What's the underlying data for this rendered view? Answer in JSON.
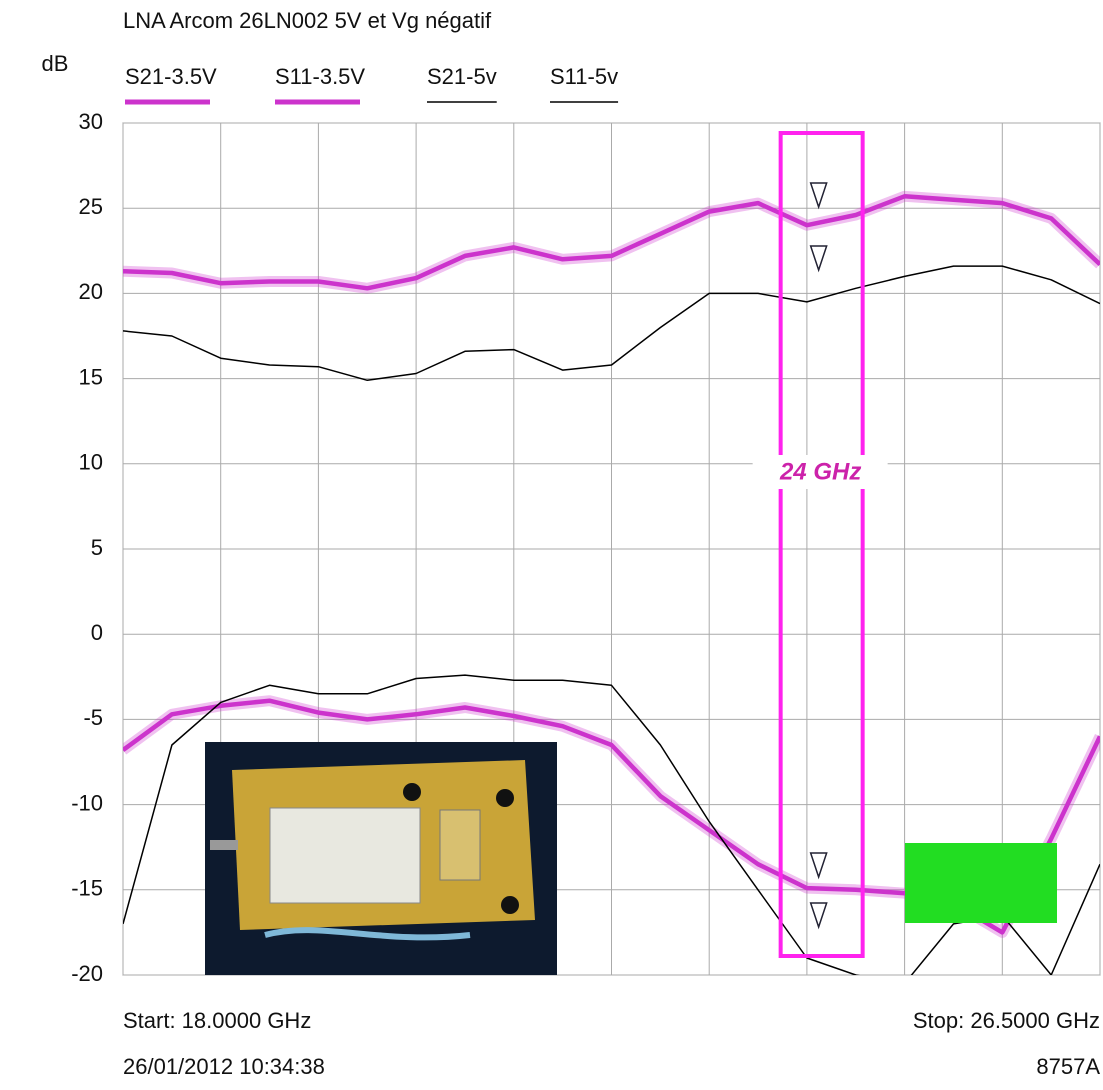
{
  "chart_data": {
    "type": "line",
    "title": "LNA Arcom 26LN002 5V et Vg négatif",
    "y_label": "dB",
    "start_label": "Start: 18.0000 GHz",
    "stop_label": "Stop: 26.5000 GHz",
    "timestamp": "26/01/2012 10:34:38",
    "instrument": "8757A",
    "annotations": [
      {
        "text": "24 GHz",
        "x": 24
      }
    ],
    "x": [
      18,
      18.425,
      18.85,
      19.275,
      19.7,
      20.125,
      20.55,
      20.975,
      21.4,
      21.825,
      22.25,
      22.675,
      23.1,
      23.525,
      23.95,
      24.375,
      24.8,
      25.225,
      25.65,
      26.075,
      26.5
    ],
    "xlim": [
      18,
      26.5
    ],
    "xticks": [
      18,
      18.85,
      19.7,
      20.55,
      21.4,
      22.25,
      23.1,
      23.95,
      24.8,
      25.65,
      26.5
    ],
    "ylim": [
      -20,
      30
    ],
    "yticks": [
      30,
      25,
      20,
      15,
      10,
      5,
      0,
      -5,
      -10,
      -15,
      -20
    ],
    "grid": true,
    "series": [
      {
        "name": "S21-3.5V",
        "color": "#cc33cc",
        "values": [
          21.3,
          21.2,
          20.6,
          20.7,
          20.7,
          20.3,
          20.9,
          22.2,
          22.7,
          22.0,
          22.2,
          23.5,
          24.8,
          25.3,
          24.0,
          24.6,
          25.7,
          25.5,
          25.3,
          24.4,
          21.7
        ]
      },
      {
        "name": "S11-3.5V",
        "color": "#cc33cc",
        "values": [
          -6.8,
          -4.7,
          -4.2,
          -3.9,
          -4.6,
          -5.0,
          -4.7,
          -4.3,
          -4.8,
          -5.4,
          -6.5,
          -9.5,
          -11.5,
          -13.5,
          -14.9,
          -15.0,
          -15.2,
          -15.8,
          -17.5,
          -12.0,
          -6.0
        ]
      },
      {
        "name": "S21-5v",
        "color": "#000000",
        "values": [
          17.8,
          17.5,
          16.2,
          15.8,
          15.7,
          14.9,
          15.3,
          16.6,
          16.7,
          15.5,
          15.8,
          18.0,
          20.0,
          20.0,
          19.5,
          20.3,
          21.0,
          21.6,
          21.6,
          20.8,
          19.4
        ]
      },
      {
        "name": "S11-5v",
        "color": "#000000",
        "values": [
          -17.0,
          -6.5,
          -4.0,
          -3.0,
          -3.5,
          -3.5,
          -2.6,
          -2.4,
          -2.7,
          -2.7,
          -3.0,
          -6.5,
          -11.0,
          -15.0,
          -19.0,
          -20.0,
          -20.5,
          -17.0,
          -16.5,
          -20.0,
          -13.5
        ]
      }
    ]
  }
}
